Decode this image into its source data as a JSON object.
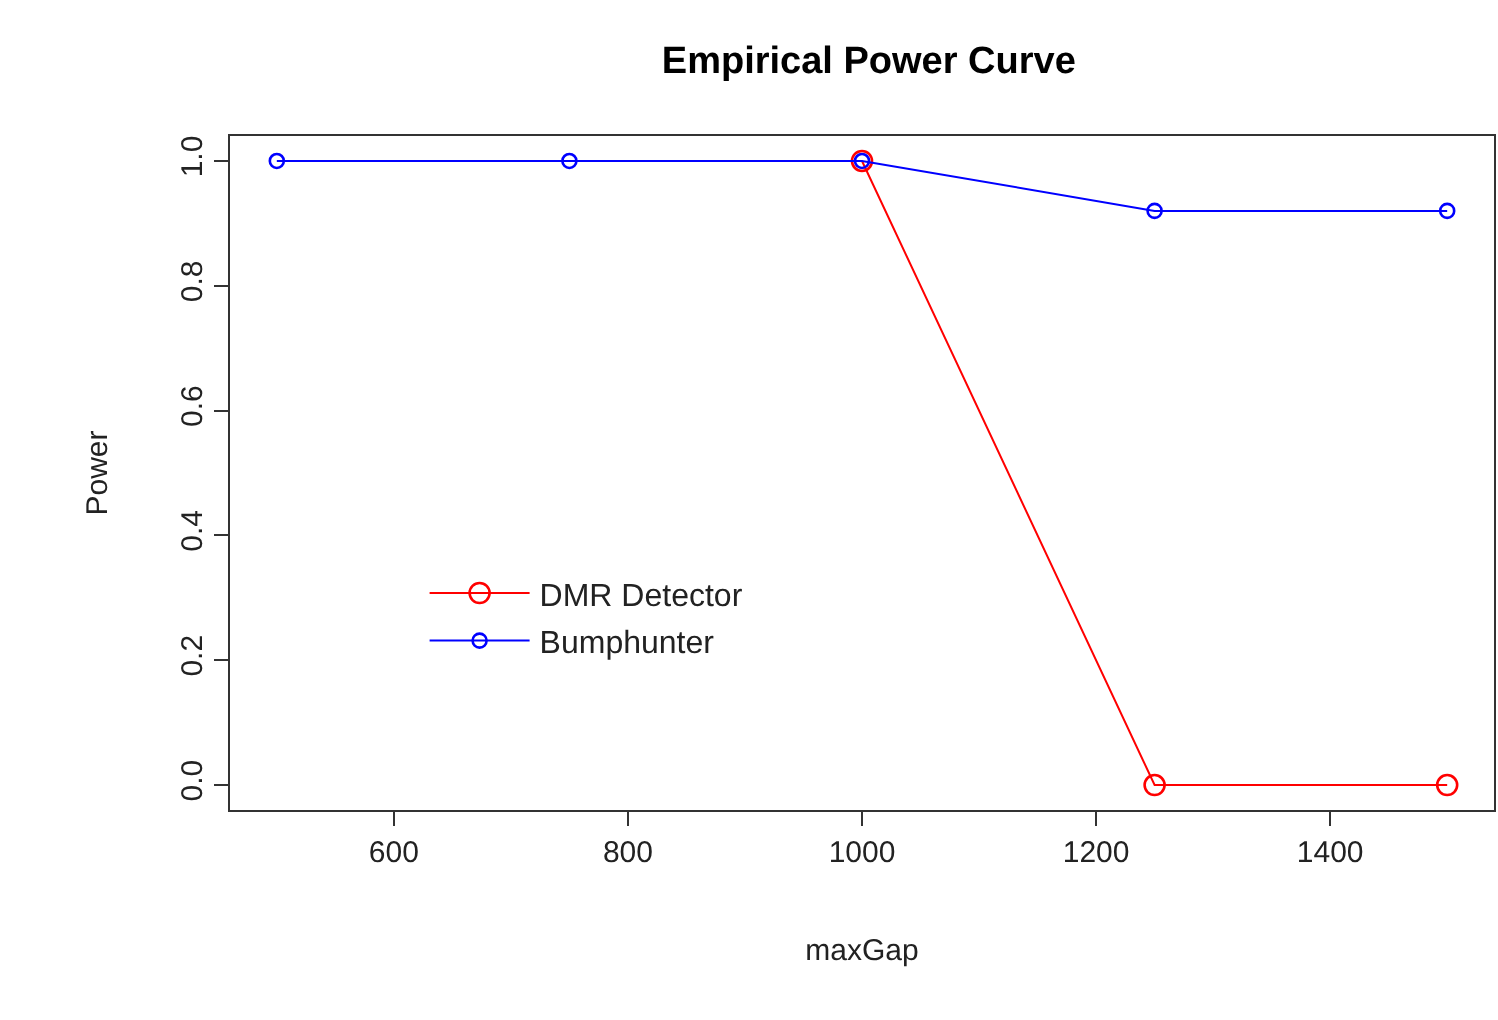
{
  "chart_data": {
    "type": "line",
    "title": "Empirical Power Curve",
    "xlabel": "maxGap",
    "ylabel": "Power",
    "x": [
      500,
      750,
      1000,
      1250,
      1500
    ],
    "series": [
      {
        "name": "DMR Detector",
        "color": "#ff0000",
        "values": [
          null,
          null,
          1,
          0,
          0
        ]
      },
      {
        "name": "Bumphunter",
        "color": "#0000ff",
        "values": [
          1,
          1,
          1,
          0.92,
          0.92
        ]
      }
    ],
    "xlim": [
      460,
      1540
    ],
    "xticks": [
      600,
      800,
      1000,
      1200,
      1400
    ],
    "ylim": [
      -0.04,
      1.04
    ],
    "yticks": [
      {
        "value": 0,
        "label": "0.0"
      },
      {
        "value": 0.2,
        "label": "0.2"
      },
      {
        "value": 0.4,
        "label": "0.4"
      },
      {
        "value": 0.6,
        "label": "0.6"
      },
      {
        "value": 0.8,
        "label": "0.8"
      },
      {
        "value": 1,
        "label": "1.0"
      }
    ],
    "grid": false,
    "legend": "bottom left",
    "marker": "circle",
    "line_style": "solid"
  }
}
